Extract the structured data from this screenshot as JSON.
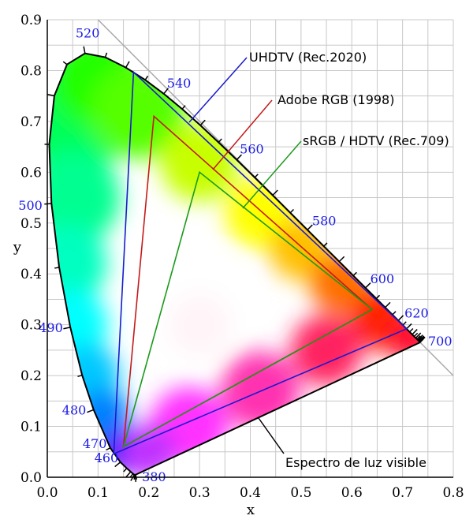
{
  "chart_data": {
    "type": "scatter",
    "xlabel": "x",
    "ylabel": "y",
    "xlim": [
      0,
      0.8
    ],
    "ylim": [
      0,
      0.9
    ],
    "x_ticks": [
      "0.0",
      "0.1",
      "0.2",
      "0.3",
      "0.4",
      "0.5",
      "0.6",
      "0.7",
      "0.8"
    ],
    "y_ticks": [
      "0.0",
      "0.1",
      "0.2",
      "0.3",
      "0.4",
      "0.5",
      "0.6",
      "0.7",
      "0.8",
      "0.9"
    ],
    "grid": true,
    "spectral_locus": [
      [
        0.1741,
        0.005
      ],
      [
        0.1738,
        0.0049
      ],
      [
        0.1733,
        0.0048
      ],
      [
        0.1726,
        0.0048
      ],
      [
        0.1714,
        0.0051
      ],
      [
        0.1689,
        0.0069
      ],
      [
        0.1644,
        0.0109
      ],
      [
        0.1566,
        0.0177
      ],
      [
        0.144,
        0.0297
      ],
      [
        0.1241,
        0.0578
      ],
      [
        0.0913,
        0.1327
      ],
      [
        0.0687,
        0.2007
      ],
      [
        0.0454,
        0.295
      ],
      [
        0.0235,
        0.4127
      ],
      [
        0.0082,
        0.5384
      ],
      [
        0.0039,
        0.6548
      ],
      [
        0.0139,
        0.7502
      ],
      [
        0.0389,
        0.812
      ],
      [
        0.0743,
        0.8338
      ],
      [
        0.1142,
        0.8262
      ],
      [
        0.1547,
        0.8059
      ],
      [
        0.1929,
        0.7816
      ],
      [
        0.2296,
        0.7543
      ],
      [
        0.2658,
        0.7243
      ],
      [
        0.3016,
        0.6923
      ],
      [
        0.3373,
        0.6589
      ],
      [
        0.3731,
        0.6245
      ],
      [
        0.4087,
        0.5896
      ],
      [
        0.4441,
        0.5547
      ],
      [
        0.4788,
        0.5202
      ],
      [
        0.5125,
        0.4866
      ],
      [
        0.5448,
        0.4544
      ],
      [
        0.5752,
        0.4242
      ],
      [
        0.6029,
        0.3965
      ],
      [
        0.627,
        0.3725
      ],
      [
        0.6482,
        0.3514
      ],
      [
        0.6658,
        0.334
      ],
      [
        0.6801,
        0.3197
      ],
      [
        0.6915,
        0.3083
      ],
      [
        0.7006,
        0.2993
      ],
      [
        0.7079,
        0.292
      ],
      [
        0.714,
        0.2859
      ],
      [
        0.719,
        0.2809
      ],
      [
        0.723,
        0.277
      ],
      [
        0.726,
        0.274
      ],
      [
        0.7283,
        0.2717
      ],
      [
        0.73,
        0.27
      ],
      [
        0.7311,
        0.2689
      ],
      [
        0.732,
        0.268
      ],
      [
        0.7327,
        0.2673
      ],
      [
        0.7334,
        0.2666
      ],
      [
        0.734,
        0.266
      ],
      [
        0.7344,
        0.2656
      ],
      [
        0.7346,
        0.2654
      ],
      [
        0.7347,
        0.2653
      ]
    ],
    "wavelength_labels": [
      {
        "text": "380",
        "x": 0.1741,
        "y": 0.005
      },
      {
        "text": "460",
        "x": 0.144,
        "y": 0.0297
      },
      {
        "text": "470",
        "x": 0.1241,
        "y": 0.0578
      },
      {
        "text": "480",
        "x": 0.0913,
        "y": 0.1327
      },
      {
        "text": "490",
        "x": 0.0454,
        "y": 0.295
      },
      {
        "text": "500",
        "x": 0.0082,
        "y": 0.5384
      },
      {
        "text": "520",
        "x": 0.0743,
        "y": 0.8338
      },
      {
        "text": "540",
        "x": 0.2296,
        "y": 0.7543
      },
      {
        "text": "560",
        "x": 0.3731,
        "y": 0.6245
      },
      {
        "text": "580",
        "x": 0.5125,
        "y": 0.4866
      },
      {
        "text": "600",
        "x": 0.627,
        "y": 0.3725
      },
      {
        "text": "620",
        "x": 0.6915,
        "y": 0.3083
      },
      {
        "text": "700",
        "x": 0.7347,
        "y": 0.2653
      }
    ],
    "gamuts": [
      {
        "name": "UHDTV (Rec.2020)",
        "color": "#1a1acc",
        "points": [
          [
            0.708,
            0.292
          ],
          [
            0.17,
            0.797
          ],
          [
            0.131,
            0.046
          ]
        ]
      },
      {
        "name": "Adobe RGB (1998)",
        "color": "#c41a1a",
        "points": [
          [
            0.64,
            0.33
          ],
          [
            0.21,
            0.71
          ],
          [
            0.15,
            0.06
          ]
        ]
      },
      {
        "name": "sRGB / HDTV (Rec.709)",
        "color": "#1a9a1a",
        "points": [
          [
            0.64,
            0.33
          ],
          [
            0.3,
            0.6
          ],
          [
            0.15,
            0.06
          ]
        ]
      }
    ],
    "boundary_line": [
      [
        0.1,
        0.9
      ],
      [
        0.8,
        0.2
      ]
    ],
    "annotations": [
      {
        "text": "UHDTV (Rec.2020)",
        "color": "#1a1acc",
        "anchor": [
          0.275,
          0.705
        ]
      },
      {
        "text": "Adobe RGB (1998)",
        "color": "#c41a1a",
        "anchor": [
          0.33,
          0.607
        ]
      },
      {
        "text": "sRGB / HDTV (Rec.709)",
        "color": "#1a9a1a",
        "anchor": [
          0.385,
          0.535
        ]
      },
      {
        "text": "Espectro de luz visible",
        "color": "#000000",
        "anchor": [
          0.43,
          0.107
        ]
      }
    ]
  },
  "colors": {
    "wavelength_label": "#1a1ae6",
    "grid": "#c8c8c8",
    "boundary": "#aaaaaa"
  }
}
